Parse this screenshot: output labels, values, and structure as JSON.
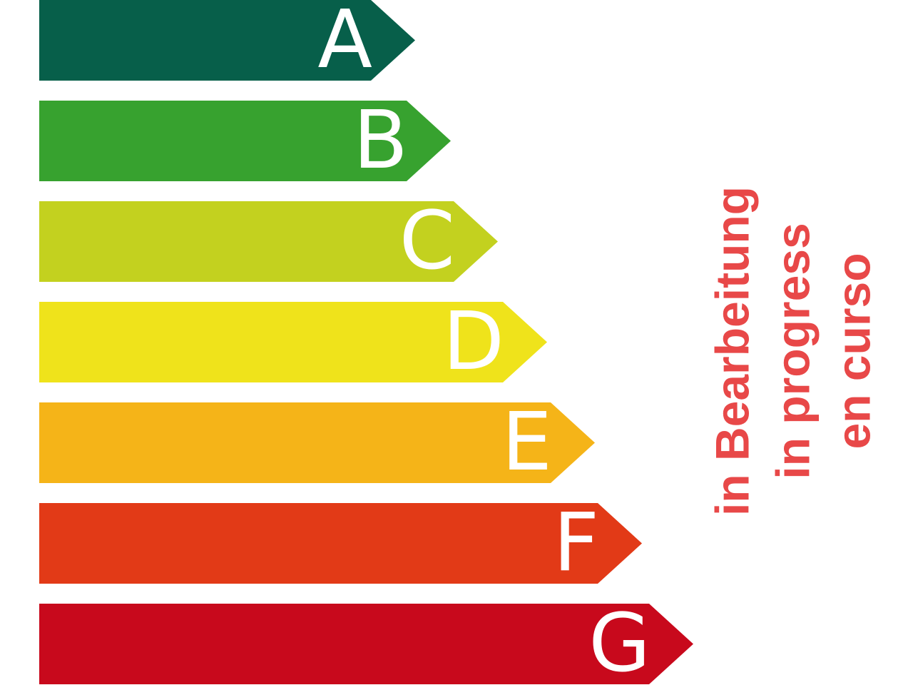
{
  "classes": [
    {
      "label": "A",
      "color": "#075f4a"
    },
    {
      "label": "B",
      "color": "#37a22f"
    },
    {
      "label": "C",
      "color": "#c3d11f"
    },
    {
      "label": "D",
      "color": "#efe31b"
    },
    {
      "label": "E",
      "color": "#f5b418"
    },
    {
      "label": "F",
      "color": "#e23a17"
    },
    {
      "label": "G",
      "color": "#c8091c"
    }
  ],
  "status": {
    "color": "#e84848",
    "lines": [
      "in Bearbeitung",
      "in progress",
      "en curso"
    ]
  }
}
